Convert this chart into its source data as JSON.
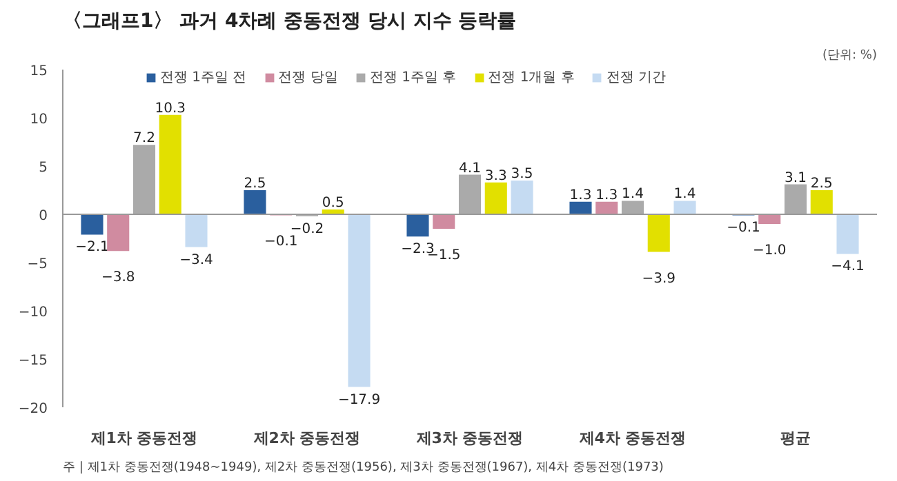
{
  "chart_data": {
    "type": "bar",
    "title": "〈그래프1〉 과거 4차례 중동전쟁 당시 지수 등락률",
    "categories": [
      "제1차 중동전쟁",
      "제2차 중동전쟁",
      "제3차 중동전쟁",
      "제4차 중동전쟁",
      "평균"
    ],
    "series": [
      {
        "name": "전쟁 1주일 전",
        "color": "#2a5f9e",
        "values": [
          -2.1,
          2.5,
          -2.3,
          1.3,
          -0.1
        ],
        "value_labels": [
          "−2.1",
          "2.5",
          "−2.3",
          "1.3",
          "−0.1"
        ]
      },
      {
        "name": "전쟁 당일",
        "color": "#d08ba0",
        "values": [
          -3.8,
          -0.1,
          -1.5,
          1.3,
          -1.0
        ],
        "value_labels": [
          "−3.8",
          "−0.1",
          "−1.5",
          "1.3",
          "−1.0"
        ]
      },
      {
        "name": "전쟁 1주일 후",
        "color": "#aaaaaa",
        "values": [
          7.2,
          -0.2,
          4.1,
          1.4,
          3.1
        ],
        "value_labels": [
          "7.2",
          "−0.2",
          "4.1",
          "1.4",
          "3.1"
        ]
      },
      {
        "name": "전쟁 1개월 후",
        "color": "#e2e000",
        "values": [
          10.3,
          0.5,
          3.3,
          -3.9,
          2.5
        ],
        "value_labels": [
          "10.3",
          "0.5",
          "3.3",
          "−3.9",
          "2.5"
        ]
      },
      {
        "name": "전쟁 기간",
        "color": "#c5dbf2",
        "values": [
          -3.4,
          -17.9,
          3.5,
          1.4,
          -4.1
        ],
        "value_labels": [
          "−3.4",
          "−17.9",
          "3.5",
          "1.4",
          "−4.1"
        ]
      }
    ],
    "ylim": [
      -20,
      15
    ],
    "yticks": [
      {
        "value": -20,
        "label": "−20"
      },
      {
        "value": -15,
        "label": "−15"
      },
      {
        "value": -10,
        "label": "−10"
      },
      {
        "value": -5,
        "label": "−5"
      },
      0,
      5,
      10,
      15
    ],
    "legend": "top",
    "annotations": [
      "(단위: %)",
      "주 | 제1차 중동전쟁(1948~1949), 제2차 중동전쟁(1956), 제3차 중동전쟁(1967), 제4차 중동전쟁(1973)"
    ]
  }
}
